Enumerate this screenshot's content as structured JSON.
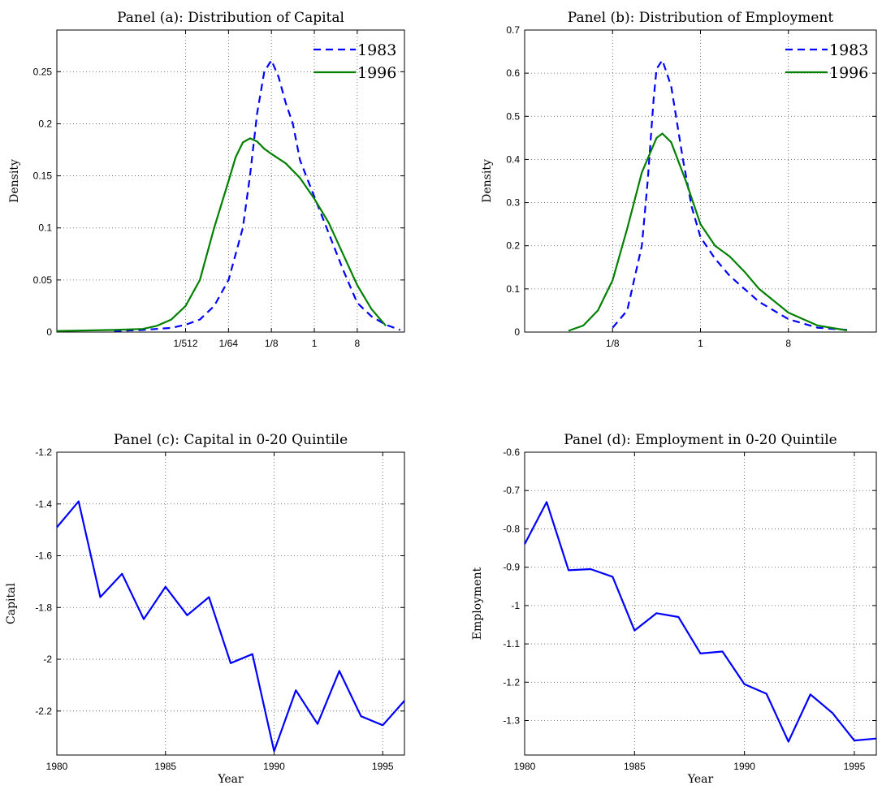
{
  "chart_data": [
    {
      "id": "a",
      "type": "line",
      "title": "Panel (a): Distribution of Capital",
      "xlabel": "",
      "ylabel": "Density",
      "xscale": "log2",
      "xlim": [
        -18,
        6.3
      ],
      "ylim": [
        0,
        0.29
      ],
      "xticks": [
        -9,
        -6,
        -3,
        0,
        3
      ],
      "xticklabels": [
        "1/512",
        "1/64",
        "1/8",
        "1",
        "8"
      ],
      "yticks": [
        0,
        0.05,
        0.1,
        0.15,
        0.2,
        0.25
      ],
      "yticklabels": [
        "0",
        "0.05",
        "0.1",
        "0.15",
        "0.2",
        "0.25"
      ],
      "grid": true,
      "legend": "top-right",
      "series": [
        {
          "name": "1983",
          "color": "#0000FF",
          "style": "dashed",
          "x": [
            -14,
            -12,
            -10,
            -9,
            -8,
            -7,
            -6,
            -5,
            -4.5,
            -4,
            -3.5,
            -3,
            -2.5,
            -2,
            -1.5,
            -1,
            0,
            1,
            2,
            3,
            4,
            5,
            6
          ],
          "y": [
            0.001,
            0.002,
            0.004,
            0.007,
            0.012,
            0.025,
            0.05,
            0.1,
            0.15,
            0.21,
            0.25,
            0.261,
            0.245,
            0.22,
            0.2,
            0.165,
            0.13,
            0.095,
            0.06,
            0.028,
            0.015,
            0.007,
            0.002
          ]
        },
        {
          "name": "1996",
          "color": "#008000",
          "style": "solid",
          "x": [
            -18,
            -14,
            -12,
            -11,
            -10,
            -9,
            -8,
            -7,
            -6,
            -5.5,
            -5,
            -4.5,
            -4,
            -3.5,
            -3,
            -2,
            -1,
            0,
            1,
            2,
            3,
            4,
            5
          ],
          "y": [
            0.001,
            0.002,
            0.003,
            0.006,
            0.012,
            0.025,
            0.05,
            0.1,
            0.145,
            0.168,
            0.182,
            0.186,
            0.183,
            0.176,
            0.171,
            0.162,
            0.148,
            0.128,
            0.105,
            0.075,
            0.045,
            0.022,
            0.006
          ]
        }
      ]
    },
    {
      "id": "b",
      "type": "line",
      "title": "Panel (b): Distribution of Employment",
      "xlabel": "",
      "ylabel": "Density",
      "xscale": "log2",
      "xlim": [
        -6,
        6
      ],
      "ylim": [
        0,
        0.7
      ],
      "xticks": [
        -3,
        0,
        3
      ],
      "xticklabels": [
        "1/8",
        "1",
        "8"
      ],
      "yticks": [
        0,
        0.1,
        0.2,
        0.3,
        0.4,
        0.5,
        0.6,
        0.7
      ],
      "yticklabels": [
        "0",
        "0.1",
        "0.2",
        "0.3",
        "0.4",
        "0.5",
        "0.6",
        "0.7"
      ],
      "grid": true,
      "legend": "top-right",
      "series": [
        {
          "name": "1983",
          "color": "#0000FF",
          "style": "dashed",
          "x": [
            -3,
            -2.5,
            -2,
            -1.8,
            -1.6,
            -1.5,
            -1.3,
            -1,
            -0.6,
            -0.3,
            0,
            0.5,
            1,
            2,
            3,
            4,
            5
          ],
          "y": [
            0.01,
            0.05,
            0.2,
            0.35,
            0.54,
            0.61,
            0.63,
            0.57,
            0.4,
            0.29,
            0.22,
            0.17,
            0.13,
            0.07,
            0.03,
            0.01,
            0.005
          ]
        },
        {
          "name": "1996",
          "color": "#008000",
          "style": "solid",
          "x": [
            -4.5,
            -4,
            -3.5,
            -3,
            -2.5,
            -2,
            -1.5,
            -1.3,
            -1,
            -0.5,
            0,
            0.5,
            1,
            1.5,
            2,
            3,
            4,
            5
          ],
          "y": [
            0.003,
            0.015,
            0.05,
            0.12,
            0.24,
            0.37,
            0.45,
            0.46,
            0.44,
            0.35,
            0.25,
            0.2,
            0.175,
            0.14,
            0.1,
            0.045,
            0.015,
            0.004
          ]
        }
      ]
    },
    {
      "id": "c",
      "type": "line",
      "title": "Panel (c): Capital in 0-20 Quintile",
      "xlabel": "Year",
      "ylabel": "Capital",
      "xlim": [
        1980,
        1996
      ],
      "ylim": [
        -2.37,
        -1.2
      ],
      "xticks": [
        1980,
        1985,
        1990,
        1995
      ],
      "xticklabels": [
        "1980",
        "1985",
        "1990",
        "1995"
      ],
      "yticks": [
        -1.2,
        -1.4,
        -1.6,
        -1.8,
        -2,
        -2.2
      ],
      "yticklabels": [
        "-1.2",
        "-1.4",
        "-1.6",
        "-1.8",
        "-2",
        "-2.2"
      ],
      "grid": true,
      "series": [
        {
          "color": "#0000FF",
          "style": "solid",
          "x": [
            1980,
            1981,
            1982,
            1983,
            1984,
            1985,
            1986,
            1987,
            1988,
            1989,
            1990,
            1991,
            1992,
            1993,
            1994,
            1995,
            1996
          ],
          "y": [
            -1.49,
            -1.39,
            -1.76,
            -1.67,
            -1.845,
            -1.72,
            -1.83,
            -1.76,
            -2.015,
            -1.98,
            -2.355,
            -2.12,
            -2.25,
            -2.045,
            -2.22,
            -2.255,
            -2.16
          ]
        }
      ]
    },
    {
      "id": "d",
      "type": "line",
      "title": "Panel (d): Employment in 0-20 Quintile",
      "xlabel": "Year",
      "ylabel": "Employment",
      "xlim": [
        1980,
        1996
      ],
      "ylim": [
        -1.39,
        -0.6
      ],
      "xticks": [
        1980,
        1985,
        1990,
        1995
      ],
      "xticklabels": [
        "1980",
        "1985",
        "1990",
        "1995"
      ],
      "yticks": [
        -0.6,
        -0.7,
        -0.8,
        -0.9,
        -1,
        -1.1,
        -1.2,
        -1.3
      ],
      "yticklabels": [
        "-0.6",
        "-0.7",
        "-0.8",
        "-0.9",
        "-1",
        "-1.1",
        "-1.2",
        "-1.3"
      ],
      "grid": true,
      "series": [
        {
          "color": "#0000FF",
          "style": "solid",
          "x": [
            1980,
            1981,
            1982,
            1983,
            1984,
            1985,
            1986,
            1987,
            1988,
            1989,
            1990,
            1991,
            1992,
            1993,
            1994,
            1995,
            1996
          ],
          "y": [
            -0.84,
            -0.73,
            -0.908,
            -0.905,
            -0.925,
            -1.065,
            -1.02,
            -1.03,
            -1.125,
            -1.12,
            -1.205,
            -1.23,
            -1.355,
            -1.232,
            -1.28,
            -1.352,
            -1.347
          ]
        }
      ]
    }
  ]
}
